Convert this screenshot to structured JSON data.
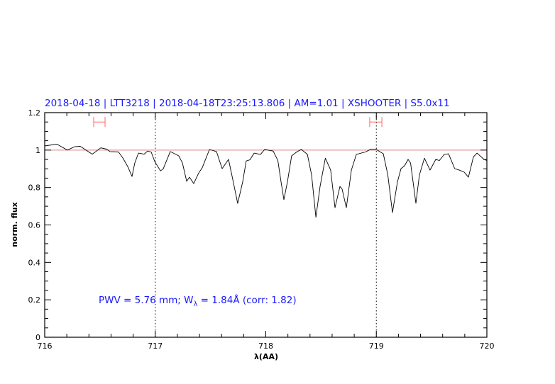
{
  "chart_data": {
    "type": "line",
    "title": "2018-04-18 | LTT3218 | 2018-04-18T23:25:13.806 | AM=1.01 | XSHOOTER | S5.0x11",
    "xlabel": "λ(AA)",
    "ylabel": "norm. flux",
    "xlim": [
      716,
      720
    ],
    "ylim": [
      0,
      1.2
    ],
    "x_ticks": [
      716,
      717,
      718,
      719,
      720
    ],
    "x_tick_labels": [
      "716",
      "717",
      "718",
      "719",
      "720"
    ],
    "x_minor_step": 0.2,
    "y_ticks": [
      0,
      0.2,
      0.4,
      0.6,
      0.8,
      1,
      1.2
    ],
    "y_tick_labels": [
      "0",
      "0.2",
      "0.4",
      "0.6",
      "0.8",
      "1",
      "1.2"
    ],
    "y_minor_step": 0.05,
    "grid": false,
    "reference_line": {
      "y": 1.0,
      "color": "#d98080"
    },
    "vertical_markers": [
      717,
      719
    ],
    "intervals": [
      {
        "x": [
          716.443,
          716.546
        ],
        "y": 1.15
      },
      {
        "x": [
          718.94,
          719.05
        ],
        "y": 1.15
      }
    ],
    "annotation": {
      "text": "PWV = 5.76 mm; W",
      "sub": "λ",
      "text2": " = 1.84Å (corr: 1.82)"
    },
    "colors": {
      "spectrum": "#000000",
      "interval": "#ff6666",
      "text": "#1a1aff"
    },
    "series": [
      {
        "x": [
          716.0,
          716.109,
          716.205,
          716.27,
          716.321,
          716.43,
          716.507,
          716.559,
          716.591,
          716.668,
          716.706,
          716.751,
          716.79,
          716.815,
          716.848,
          716.899,
          716.931,
          716.963,
          716.995,
          717.047,
          717.072,
          717.136,
          717.213,
          717.246,
          717.284,
          717.31,
          717.348,
          717.393,
          717.425,
          717.49,
          717.554,
          717.605,
          717.663,
          717.701,
          717.746,
          717.791,
          717.823,
          717.856,
          717.894,
          717.952,
          717.99,
          718.067,
          718.109,
          718.138,
          718.164,
          718.196,
          718.234,
          718.279,
          718.321,
          718.376,
          718.414,
          718.453,
          718.491,
          718.539,
          718.587,
          718.626,
          718.671,
          718.69,
          718.729,
          718.774,
          718.819,
          718.902,
          718.947,
          718.998,
          719.063,
          719.104,
          719.146,
          719.191,
          719.223,
          719.255,
          719.287,
          719.31,
          719.358,
          719.39,
          719.435,
          719.486,
          719.538,
          719.57,
          719.615,
          719.653,
          719.709,
          719.75,
          719.795,
          719.833,
          719.878,
          719.911,
          719.974,
          720.0
        ],
        "y": [
          1.022,
          1.032,
          1.0,
          1.018,
          1.02,
          0.978,
          1.012,
          1.005,
          0.992,
          0.99,
          0.958,
          0.912,
          0.859,
          0.931,
          0.984,
          0.978,
          0.995,
          0.99,
          0.939,
          0.889,
          0.9,
          0.992,
          0.969,
          0.931,
          0.833,
          0.855,
          0.821,
          0.878,
          0.905,
          1.003,
          0.992,
          0.901,
          0.95,
          0.844,
          0.715,
          0.829,
          0.942,
          0.948,
          0.984,
          0.977,
          1.003,
          0.995,
          0.944,
          0.83,
          0.735,
          0.83,
          0.969,
          0.99,
          1.004,
          0.977,
          0.868,
          0.641,
          0.806,
          0.957,
          0.893,
          0.692,
          0.806,
          0.792,
          0.692,
          0.893,
          0.977,
          0.99,
          1.004,
          1.004,
          0.98,
          0.868,
          0.666,
          0.83,
          0.901,
          0.916,
          0.95,
          0.931,
          0.716,
          0.868,
          0.957,
          0.893,
          0.95,
          0.944,
          0.977,
          0.98,
          0.901,
          0.893,
          0.882,
          0.855,
          0.963,
          0.984,
          0.95,
          0.944
        ]
      }
    ]
  }
}
